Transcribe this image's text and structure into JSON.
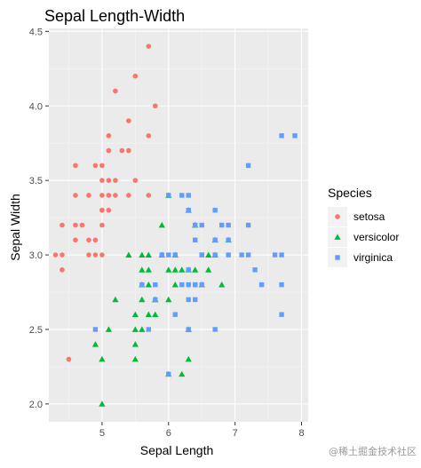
{
  "watermark": "@稀土掘金技术社区",
  "colors": {
    "panel_bg": "#ebebeb",
    "grid_major": "#ffffff",
    "grid_minor": "#f5f5f5",
    "setosa": "#F8766D",
    "versicolor": "#00BA38",
    "virginica": "#619CFF"
  },
  "chart_data": {
    "type": "scatter",
    "title": "Sepal Length-Width",
    "xlabel": "Sepal Length",
    "ylabel": "Sepal Width",
    "xlim": [
      4.2,
      8.1
    ],
    "ylim": [
      1.88,
      4.52
    ],
    "xticks": [
      5,
      6,
      7,
      8
    ],
    "yticks": [
      2.0,
      2.5,
      3.0,
      3.5,
      4.0,
      4.5
    ],
    "ytick_labels": [
      "2.0",
      "2.5",
      "3.0",
      "3.5",
      "4.0",
      "4.5"
    ],
    "grid": true,
    "legend": {
      "title": "Species",
      "position": "right",
      "entries": [
        "setosa",
        "versicolor",
        "virginica"
      ]
    },
    "series": [
      {
        "name": "setosa",
        "shape": "circle",
        "points": [
          [
            5.7,
            4.4
          ],
          [
            5.5,
            4.2
          ],
          [
            5.2,
            4.1
          ],
          [
            5.8,
            4.0
          ],
          [
            5.4,
            3.9
          ],
          [
            5.7,
            3.8
          ],
          [
            5.1,
            3.8
          ],
          [
            5.3,
            3.7
          ],
          [
            5.4,
            3.7
          ],
          [
            5.1,
            3.7
          ],
          [
            4.6,
            3.6
          ],
          [
            5.0,
            3.6
          ],
          [
            4.9,
            3.6
          ],
          [
            5.0,
            3.5
          ],
          [
            5.1,
            3.5
          ],
          [
            5.2,
            3.5
          ],
          [
            5.5,
            3.5
          ],
          [
            5.4,
            3.4
          ],
          [
            4.6,
            3.4
          ],
          [
            4.8,
            3.4
          ],
          [
            5.0,
            3.4
          ],
          [
            5.1,
            3.4
          ],
          [
            5.2,
            3.4
          ],
          [
            5.7,
            3.4
          ],
          [
            5.0,
            3.3
          ],
          [
            5.1,
            3.3
          ],
          [
            4.4,
            3.2
          ],
          [
            4.6,
            3.2
          ],
          [
            4.7,
            3.2
          ],
          [
            5.0,
            3.2
          ],
          [
            4.9,
            3.1
          ],
          [
            4.8,
            3.1
          ],
          [
            4.6,
            3.1
          ],
          [
            5.0,
            3.0
          ],
          [
            4.3,
            3.0
          ],
          [
            4.4,
            3.0
          ],
          [
            4.8,
            3.0
          ],
          [
            4.9,
            3.0
          ],
          [
            4.4,
            2.9
          ],
          [
            5.0,
            3.3
          ],
          [
            4.5,
            2.3
          ]
        ]
      },
      {
        "name": "versicolor",
        "shape": "triangle",
        "points": [
          [
            6.0,
            3.4
          ],
          [
            5.9,
            3.2
          ],
          [
            6.3,
            3.3
          ],
          [
            6.7,
            3.1
          ],
          [
            6.9,
            3.1
          ],
          [
            6.4,
            3.2
          ],
          [
            6.7,
            3.0
          ],
          [
            6.8,
            2.8
          ],
          [
            6.6,
            2.9
          ],
          [
            6.0,
            2.9
          ],
          [
            5.6,
            2.9
          ],
          [
            6.1,
            2.9
          ],
          [
            6.2,
            2.9
          ],
          [
            6.4,
            2.9
          ],
          [
            5.7,
            2.9
          ],
          [
            6.6,
            3.0
          ],
          [
            5.9,
            3.0
          ],
          [
            5.6,
            3.0
          ],
          [
            6.1,
            3.0
          ],
          [
            5.4,
            3.0
          ],
          [
            5.7,
            3.0
          ],
          [
            5.2,
            2.7
          ],
          [
            5.8,
            2.7
          ],
          [
            6.0,
            2.7
          ],
          [
            5.6,
            2.7
          ],
          [
            6.3,
            2.5
          ],
          [
            6.1,
            2.8
          ],
          [
            5.7,
            2.8
          ],
          [
            6.5,
            2.8
          ],
          [
            5.8,
            2.6
          ],
          [
            5.5,
            2.6
          ],
          [
            5.7,
            2.6
          ],
          [
            5.5,
            2.5
          ],
          [
            5.6,
            2.5
          ],
          [
            5.5,
            2.4
          ],
          [
            4.9,
            2.4
          ],
          [
            5.5,
            2.3
          ],
          [
            6.3,
            2.3
          ],
          [
            5.0,
            2.3
          ],
          [
            6.2,
            2.2
          ],
          [
            6.0,
            2.2
          ],
          [
            5.0,
            2.0
          ],
          [
            5.8,
            2.7
          ],
          [
            5.1,
            2.5
          ],
          [
            6.3,
            2.9
          ],
          [
            5.6,
            2.8
          ]
        ]
      },
      {
        "name": "virginica",
        "shape": "square",
        "points": [
          [
            7.7,
            3.8
          ],
          [
            7.9,
            3.8
          ],
          [
            7.2,
            3.6
          ],
          [
            6.2,
            3.4
          ],
          [
            6.3,
            3.4
          ],
          [
            6.0,
            3.4
          ],
          [
            6.3,
            3.3
          ],
          [
            6.7,
            3.3
          ],
          [
            6.4,
            3.2
          ],
          [
            6.5,
            3.2
          ],
          [
            6.9,
            3.2
          ],
          [
            6.8,
            3.2
          ],
          [
            7.2,
            3.2
          ],
          [
            6.4,
            3.1
          ],
          [
            6.9,
            3.1
          ],
          [
            6.7,
            3.1
          ],
          [
            6.5,
            3.0
          ],
          [
            6.9,
            3.0
          ],
          [
            6.7,
            3.0
          ],
          [
            7.6,
            3.0
          ],
          [
            7.7,
            3.0
          ],
          [
            7.1,
            3.0
          ],
          [
            7.2,
            3.0
          ],
          [
            6.1,
            3.0
          ],
          [
            6.0,
            3.0
          ],
          [
            5.9,
            3.0
          ],
          [
            6.5,
            3.0
          ],
          [
            7.3,
            2.9
          ],
          [
            6.3,
            2.9
          ],
          [
            6.4,
            2.8
          ],
          [
            5.8,
            2.8
          ],
          [
            6.2,
            2.8
          ],
          [
            6.3,
            2.8
          ],
          [
            7.7,
            2.8
          ],
          [
            7.4,
            2.8
          ],
          [
            5.6,
            2.8
          ],
          [
            5.8,
            2.7
          ],
          [
            6.4,
            2.7
          ],
          [
            6.3,
            2.7
          ],
          [
            7.7,
            2.6
          ],
          [
            6.1,
            2.6
          ],
          [
            6.3,
            2.5
          ],
          [
            6.7,
            2.5
          ],
          [
            4.9,
            2.5
          ],
          [
            5.7,
            2.5
          ],
          [
            6.0,
            2.2
          ],
          [
            6.4,
            2.8
          ],
          [
            6.5,
            2.8
          ]
        ]
      }
    ]
  }
}
